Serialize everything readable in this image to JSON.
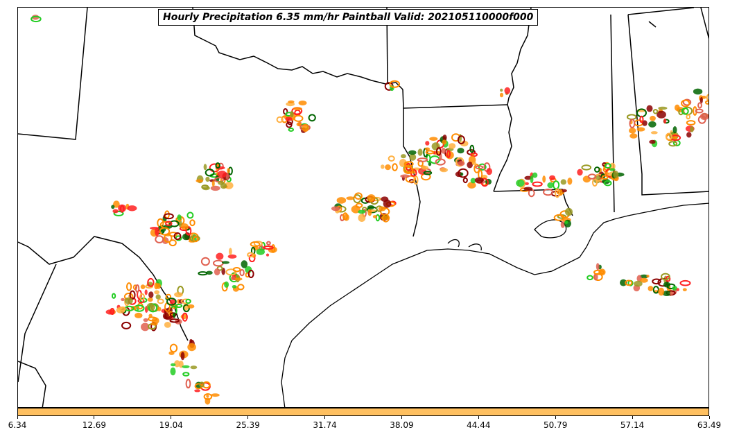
{
  "title": "Hourly Precipitation 6.35 mm/hr Paintball Valid: 202105110000f000",
  "colorbar": {
    "color": "#ffc060",
    "ticks": [
      "6.34",
      "12.69",
      "19.04",
      "25.39",
      "31.74",
      "38.09",
      "44.44",
      "50.79",
      "57.14",
      "63.49"
    ]
  },
  "palette": {
    "orange": "#ff8c00",
    "light_orange": "#ffb040",
    "red": "#ff2020",
    "dark_red": "#8b0000",
    "green": "#22cc22",
    "dark_green": "#006400",
    "olive": "#999922",
    "salmon": "#e06050"
  }
}
